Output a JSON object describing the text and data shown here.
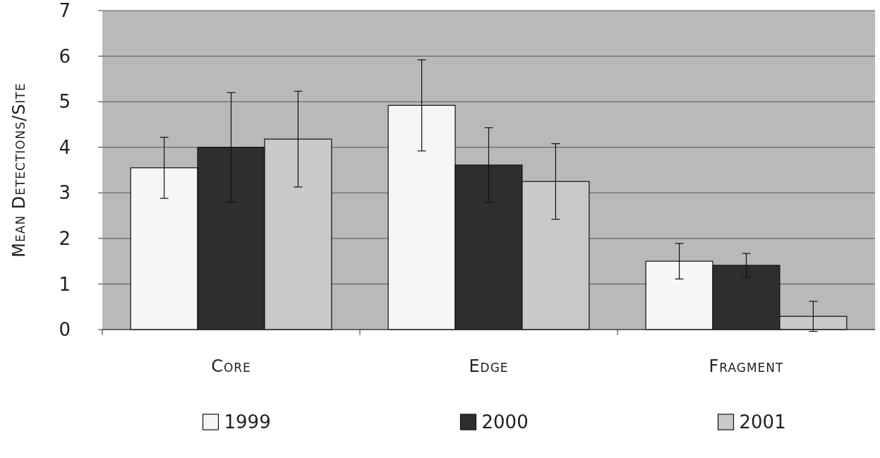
{
  "chart_data": {
    "type": "bar",
    "ylabel": "Mean Detections/Site",
    "categories": [
      "Core",
      "Edge",
      "Fragment"
    ],
    "series": [
      {
        "name": "1999",
        "color": "#f6f6f6",
        "values": [
          3.55,
          4.92,
          1.5
        ],
        "errors": [
          0.67,
          1.0,
          0.39
        ]
      },
      {
        "name": "2000",
        "color": "#2e2e2e",
        "values": [
          4.0,
          3.61,
          1.41
        ],
        "errors": [
          1.2,
          0.82,
          0.26
        ]
      },
      {
        "name": "2001",
        "color": "#c9c9c9",
        "values": [
          4.18,
          3.25,
          0.29
        ],
        "errors": [
          1.05,
          0.83,
          0.33
        ]
      }
    ],
    "ylim": [
      0,
      7
    ],
    "yticks": [
      0,
      1,
      2,
      3,
      4,
      5,
      6,
      7
    ],
    "grid": "y",
    "legend": "bottom"
  }
}
